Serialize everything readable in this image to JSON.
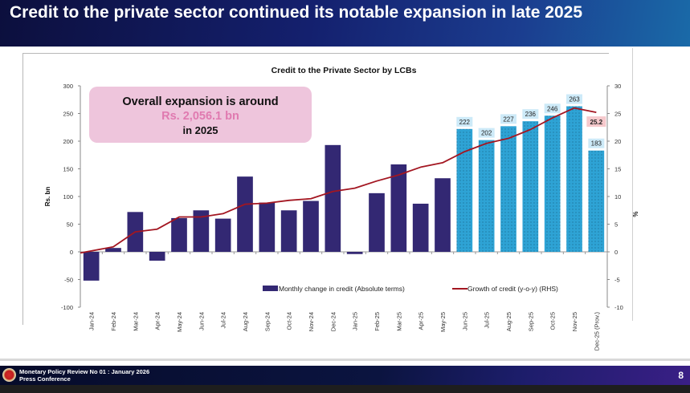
{
  "slide": {
    "title": "Credit to the private sector continued its notable expansion in late 2025",
    "footer_line1": "Monetary Policy Review No 01 : January 2026",
    "footer_line2": "Press Conference",
    "page_number": "8",
    "emblem_icon": "central-bank-emblem-icon"
  },
  "callout": {
    "line1": "Overall expansion is around",
    "line2": "Rs. 2,056.1 bn",
    "line3": "in 2025"
  },
  "chart_data": {
    "type": "bar",
    "title": "Credit to the Private Sector by LCBs",
    "xlabel": "",
    "ylabel": "Rs. bn",
    "y2label": "%",
    "ylim": [
      -100,
      300
    ],
    "y2lim": [
      -10,
      30
    ],
    "yticks": [
      -100,
      -50,
      0,
      50,
      100,
      150,
      200,
      250,
      300
    ],
    "y2ticks": [
      -10,
      -5,
      0,
      5,
      10,
      15,
      20,
      25,
      30
    ],
    "grid": false,
    "legend_position": "bottom-center-inside",
    "categories": [
      "Jan-24",
      "Feb-24",
      "Mar-24",
      "Apr-24",
      "May-24",
      "Jun-24",
      "Jul-24",
      "Aug-24",
      "Sep-24",
      "Oct-24",
      "Nov-24",
      "Dec-24",
      "Jan-25",
      "Feb-25",
      "Mar-25",
      "Apr-25",
      "May-25",
      "Jun-25",
      "Jul-25",
      "Aug-25",
      "Sep-25",
      "Oct-25",
      "Nov-25",
      "Dec-25 (Prov.)"
    ],
    "series": [
      {
        "name": "Monthly change in credit (Absolute terms)",
        "type": "bar",
        "axis": "left",
        "color": "#332873",
        "highlight_color": "#2ea3d5",
        "highlight_from_index": 17,
        "values": [
          -52,
          7,
          72,
          -16,
          61,
          75,
          60,
          136,
          89,
          75,
          92,
          193,
          -4,
          106,
          158,
          87,
          133,
          222,
          202,
          227,
          236,
          246,
          263,
          183
        ],
        "labeled_values": [
          222,
          202,
          227,
          236,
          246,
          263,
          183
        ],
        "label_bg": "#cdeaf8"
      },
      {
        "name": "Growth of credit (y-o-y) (RHS)",
        "type": "line",
        "axis": "right",
        "color": "#a31621",
        "values": [
          -0.2,
          0.9,
          3.6,
          4.1,
          6.3,
          6.3,
          6.9,
          8.6,
          8.8,
          9.3,
          9.6,
          10.9,
          11.5,
          12.8,
          13.9,
          15.3,
          16.1,
          18.1,
          19.6,
          20.5,
          22.1,
          24.2,
          26.0,
          25.2
        ],
        "end_label": "25.2",
        "end_label_bg": "#f6c9cc"
      }
    ]
  }
}
